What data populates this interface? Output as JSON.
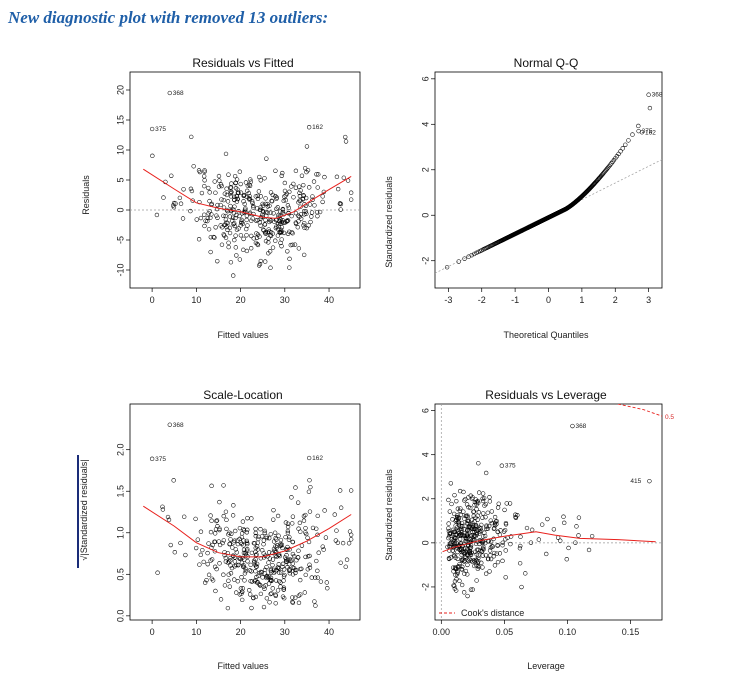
{
  "heading": "New diagnostic plot with removed 13 outliers:",
  "colors": {
    "smooth": "#e8201c",
    "points": "#000000",
    "heading": "#1f5fa8",
    "refline": "#9a9a9a",
    "cook": "#e8201c"
  },
  "chart_data": [
    {
      "type": "scatter",
      "title": "Residuals vs Fitted",
      "xlabel": "Fitted values",
      "ylabel": "Residuals",
      "xlim": [
        -5,
        47
      ],
      "ylim": [
        -13,
        23
      ],
      "xticks": [
        "0",
        "10",
        "20",
        "30",
        "40"
      ],
      "xtick_values": [
        0,
        10,
        20,
        30,
        40
      ],
      "yticks": [
        "-10",
        "-5",
        "0",
        "5",
        "10",
        "15",
        "20"
      ],
      "ytick_values": [
        -10,
        -5,
        0,
        5,
        10,
        15,
        20
      ],
      "reference_line": 0,
      "smooth": [
        [
          -2,
          6.8
        ],
        [
          5,
          3.5
        ],
        [
          10,
          1.2
        ],
        [
          15,
          0.3
        ],
        [
          20,
          -0.3
        ],
        [
          25,
          -1.2
        ],
        [
          28,
          -1.4
        ],
        [
          32,
          -0.3
        ],
        [
          36,
          1.6
        ],
        [
          40,
          3.4
        ],
        [
          45,
          5.6
        ]
      ],
      "annotations": [
        {
          "label": "368",
          "x": 4.0,
          "y": 19.5
        },
        {
          "label": "375",
          "x": 0.0,
          "y": 13.5
        },
        {
          "label": "162",
          "x": 35.5,
          "y": 13.8
        }
      ],
      "seed": 11
    },
    {
      "type": "scatter",
      "title": "Normal Q-Q",
      "xlabel": "Theoretical Quantiles",
      "ylabel": "Standardized residuals",
      "xlim": [
        -3.4,
        3.4
      ],
      "ylim": [
        -3.2,
        6.3
      ],
      "xticks": [
        "-3",
        "-2",
        "-1",
        "0",
        "1",
        "2",
        "3"
      ],
      "xtick_values": [
        -3,
        -2,
        -1,
        0,
        1,
        2,
        3
      ],
      "yticks": [
        "-2",
        "0",
        "2",
        "4",
        "6"
      ],
      "ytick_values": [
        -2,
        0,
        2,
        4,
        6
      ],
      "annotations": [
        {
          "label": "368",
          "x": 3.0,
          "y": 5.3
        },
        {
          "label": "375",
          "x": 2.7,
          "y": 3.7
        },
        {
          "label": "162",
          "x": 2.8,
          "y": 3.65
        }
      ]
    },
    {
      "type": "scatter",
      "title": "Scale-Location",
      "xlabel": "Fitted values",
      "ylabel": "√|Standardized residuals|",
      "xlim": [
        -5,
        47
      ],
      "ylim": [
        -0.05,
        2.55
      ],
      "xticks": [
        "0",
        "10",
        "20",
        "30",
        "40"
      ],
      "xtick_values": [
        0,
        10,
        20,
        30,
        40
      ],
      "yticks": [
        "0.0",
        "0.5",
        "1.0",
        "1.5",
        "2.0"
      ],
      "ytick_values": [
        0,
        0.5,
        1.0,
        1.5,
        2.0
      ],
      "smooth": [
        [
          -2,
          1.32
        ],
        [
          5,
          1.08
        ],
        [
          10,
          0.88
        ],
        [
          15,
          0.76
        ],
        [
          20,
          0.71
        ],
        [
          25,
          0.71
        ],
        [
          30,
          0.78
        ],
        [
          35,
          0.9
        ],
        [
          40,
          1.05
        ],
        [
          45,
          1.22
        ]
      ],
      "annotations": [
        {
          "label": "368",
          "x": 4.0,
          "y": 2.3
        },
        {
          "label": "375",
          "x": 0.0,
          "y": 1.89
        },
        {
          "label": "162",
          "x": 35.5,
          "y": 1.9
        }
      ],
      "seed": 23
    },
    {
      "type": "scatter",
      "title": "Residuals vs Leverage",
      "xlabel": "Leverage",
      "ylabel": "Standardized residuals",
      "xlim": [
        -0.005,
        0.175
      ],
      "ylim": [
        -3.5,
        6.3
      ],
      "xticks": [
        "0.00",
        "0.05",
        "0.10",
        "0.15"
      ],
      "xtick_values": [
        0,
        0.05,
        0.1,
        0.15
      ],
      "yticks": [
        "-2",
        "0",
        "2",
        "4",
        "6"
      ],
      "ytick_values": [
        -2,
        0,
        2,
        4,
        6
      ],
      "reference_line": 0,
      "smooth": [
        [
          0.001,
          -0.4
        ],
        [
          0.01,
          -0.2
        ],
        [
          0.03,
          0.1
        ],
        [
          0.05,
          0.3
        ],
        [
          0.075,
          0.5
        ],
        [
          0.09,
          0.35
        ],
        [
          0.11,
          0.2
        ],
        [
          0.14,
          0.15
        ],
        [
          0.17,
          0.05
        ]
      ],
      "cook_contour": {
        "label": "0.5",
        "points": [
          [
            0.14,
            6.3
          ],
          [
            0.16,
            6.05
          ],
          [
            0.175,
            5.75
          ]
        ]
      },
      "legend": "Cook's distance",
      "legend_position": "bottom-left",
      "annotations": [
        {
          "label": "368",
          "x": 0.104,
          "y": 5.3
        },
        {
          "label": "375",
          "x": 0.048,
          "y": 3.5
        },
        {
          "label": "415",
          "x": 0.165,
          "y": 2.8
        }
      ],
      "seed": 37
    }
  ]
}
